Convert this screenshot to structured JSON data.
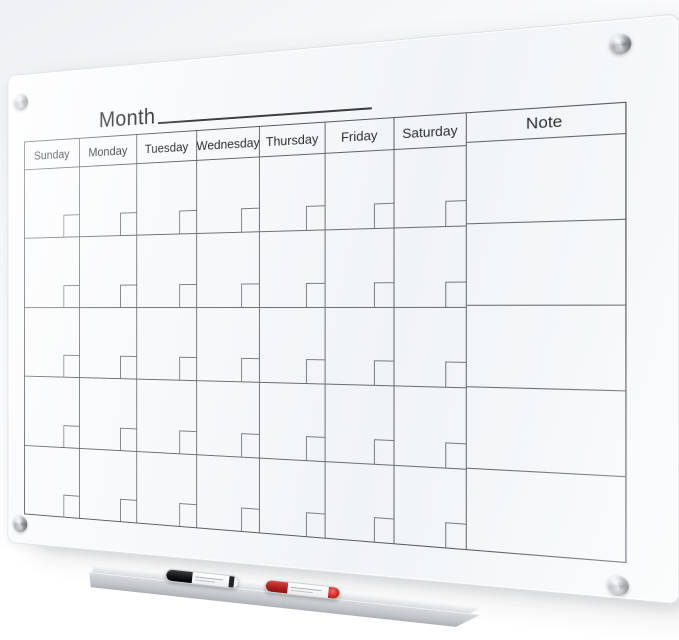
{
  "board": {
    "title": "Month",
    "day_headers": [
      "Sunday",
      "Monday",
      "Tuesday",
      "Wednesday",
      "Thursday",
      "Friday",
      "Saturday"
    ],
    "note_header": "Note",
    "calendar_rows": 5,
    "calendar_columns": 7,
    "note_rows": 5,
    "date_box_per_cell": 1,
    "mounting_standoffs": 4,
    "colors": {
      "grid_line": "#6a6f74",
      "grid_border": "#565b60",
      "text": "#2c2e31",
      "glass_tint": "#f3f5f8",
      "hardware_silver": "#a9aeb4"
    }
  },
  "tray": {
    "color": "#c2c6ca",
    "markers": [
      {
        "name": "black dry-erase marker",
        "cap_color": "#141517",
        "body_color": "#ffffff"
      },
      {
        "name": "red dry-erase marker",
        "cap_color": "#b01f1a",
        "body_color": "#ffffff"
      }
    ]
  }
}
